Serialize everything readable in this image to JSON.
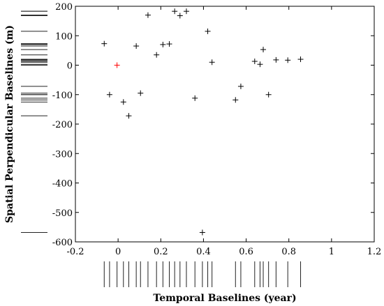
{
  "chart_data": {
    "type": "scatter",
    "xlabel": "Temporal Baselines (year)",
    "ylabel": "Spatial Perpendicular Baselines (m)",
    "xlim": [
      -0.2,
      1.2
    ],
    "ylim": [
      -600,
      200
    ],
    "xticks": [
      -0.2,
      0,
      0.2,
      0.4,
      0.6,
      0.8,
      1,
      1.2
    ],
    "xtick_labels": [
      "-0.2",
      "0",
      "0.2",
      "0.4",
      "0.6",
      "0.8",
      "1",
      "1.2"
    ],
    "yticks": [
      200,
      100,
      0,
      -100,
      -200,
      -300,
      -400,
      -500,
      -600
    ],
    "ytick_labels": [
      "200",
      "100",
      "0",
      "-100",
      "-200",
      "-300",
      "-400",
      "-500",
      "-600"
    ],
    "grid": false,
    "marker": "plus",
    "series": [
      {
        "color": "#000000",
        "points": [
          {
            "x": -0.065,
            "y": 73
          },
          {
            "x": -0.04,
            "y": -100
          },
          {
            "x": 0.025,
            "y": -125
          },
          {
            "x": 0.05,
            "y": -172
          },
          {
            "x": 0.085,
            "y": 65
          },
          {
            "x": 0.105,
            "y": -95
          },
          {
            "x": 0.14,
            "y": 170
          },
          {
            "x": 0.18,
            "y": 35
          },
          {
            "x": 0.21,
            "y": 70
          },
          {
            "x": 0.24,
            "y": 72
          },
          {
            "x": 0.265,
            "y": 183
          },
          {
            "x": 0.29,
            "y": 168
          },
          {
            "x": 0.32,
            "y": 183
          },
          {
            "x": 0.36,
            "y": -112
          },
          {
            "x": 0.395,
            "y": -568
          },
          {
            "x": 0.42,
            "y": 115
          },
          {
            "x": 0.44,
            "y": 10
          },
          {
            "x": 0.55,
            "y": -118
          },
          {
            "x": 0.575,
            "y": -72
          },
          {
            "x": 0.64,
            "y": 13
          },
          {
            "x": 0.665,
            "y": 3
          },
          {
            "x": 0.68,
            "y": 53
          },
          {
            "x": 0.705,
            "y": -100
          },
          {
            "x": 0.74,
            "y": 18
          },
          {
            "x": 0.795,
            "y": 17
          },
          {
            "x": 0.855,
            "y": 20
          }
        ]
      },
      {
        "color": "#ff0000",
        "points": [
          {
            "x": -0.005,
            "y": 0
          }
        ]
      }
    ]
  }
}
